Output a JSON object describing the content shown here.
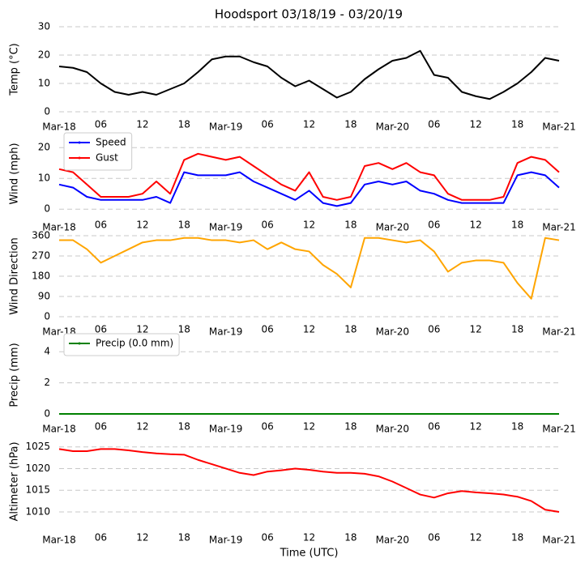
{
  "chart_data": [
    {
      "type": "line",
      "title": "Hoodsport 03/18/19 - 03/20/19",
      "ylabel": "Temp (°C)",
      "x": [
        0,
        2,
        4,
        6,
        8,
        10,
        12,
        14,
        16,
        18,
        20,
        22,
        24,
        26,
        28,
        30,
        32,
        34,
        36,
        38,
        40,
        42,
        44,
        46,
        48,
        50,
        52,
        54,
        56,
        58,
        60,
        62,
        64,
        66,
        68,
        70,
        72
      ],
      "series": [
        {
          "name": null,
          "color": "#000000",
          "values": [
            16,
            15.5,
            14,
            10,
            7,
            6,
            7,
            6,
            8,
            10,
            14,
            18.5,
            19.5,
            19.5,
            17.5,
            16,
            12,
            9,
            11,
            8,
            5,
            7,
            11.5,
            15,
            18,
            19,
            21.5,
            13,
            12,
            7,
            5.5,
            4.5,
            7,
            10,
            14,
            19,
            18
          ]
        }
      ],
      "xlim": [
        0,
        72
      ],
      "xticks": [
        {
          "value": 0,
          "label": "Mar-18"
        },
        {
          "value": 6,
          "label": "06"
        },
        {
          "value": 12,
          "label": "12"
        },
        {
          "value": 18,
          "label": "18"
        },
        {
          "value": 24,
          "label": "Mar-19"
        },
        {
          "value": 30,
          "label": "06"
        },
        {
          "value": 36,
          "label": "12"
        },
        {
          "value": 42,
          "label": "18"
        },
        {
          "value": 48,
          "label": "Mar-20"
        },
        {
          "value": 54,
          "label": "06"
        },
        {
          "value": 60,
          "label": "12"
        },
        {
          "value": 66,
          "label": "18"
        },
        {
          "value": 72,
          "label": "Mar-21"
        }
      ],
      "ylim": [
        0,
        30
      ],
      "yticks": [
        0,
        10,
        20,
        30
      ],
      "grid": true
    },
    {
      "type": "line",
      "ylabel": "Wind (mph)",
      "x": [
        0,
        2,
        4,
        6,
        8,
        10,
        12,
        14,
        16,
        18,
        20,
        22,
        24,
        26,
        28,
        30,
        32,
        34,
        36,
        38,
        40,
        42,
        44,
        46,
        48,
        50,
        52,
        54,
        56,
        58,
        60,
        62,
        64,
        66,
        68,
        70,
        72
      ],
      "series": [
        {
          "name": "Speed",
          "color": "#0000ff",
          "values": [
            8,
            7,
            4,
            3,
            3,
            3,
            3,
            4,
            2,
            12,
            11,
            11,
            11,
            12,
            9,
            7,
            5,
            3,
            6,
            2,
            1,
            2,
            8,
            9,
            8,
            9,
            6,
            5,
            3,
            2,
            2,
            2,
            2,
            11,
            12,
            11,
            7
          ]
        },
        {
          "name": "Gust",
          "color": "#ff0000",
          "values": [
            13,
            12,
            8,
            4,
            4,
            4,
            5,
            9,
            5,
            16,
            18,
            17,
            16,
            17,
            14,
            11,
            8,
            6,
            12,
            4,
            3,
            4,
            14,
            15,
            13,
            15,
            12,
            11,
            5,
            3,
            3,
            3,
            4,
            15,
            17,
            16,
            12
          ]
        }
      ],
      "xlim": [
        0,
        72
      ],
      "xticks": [
        {
          "value": 0,
          "label": "Mar-18"
        },
        {
          "value": 6,
          "label": "06"
        },
        {
          "value": 12,
          "label": "12"
        },
        {
          "value": 18,
          "label": "18"
        },
        {
          "value": 24,
          "label": "Mar-19"
        },
        {
          "value": 30,
          "label": "06"
        },
        {
          "value": 36,
          "label": "12"
        },
        {
          "value": 42,
          "label": "18"
        },
        {
          "value": 48,
          "label": "Mar-20"
        },
        {
          "value": 54,
          "label": "06"
        },
        {
          "value": 60,
          "label": "12"
        },
        {
          "value": 66,
          "label": "18"
        },
        {
          "value": 72,
          "label": "Mar-21"
        }
      ],
      "ylim": [
        -1,
        24
      ],
      "yticks": [
        0,
        10,
        20
      ],
      "grid": true,
      "legend": "upper left"
    },
    {
      "type": "line",
      "ylabel": "Wind Direction",
      "x": [
        0,
        2,
        4,
        6,
        8,
        10,
        12,
        14,
        16,
        18,
        20,
        22,
        24,
        26,
        28,
        30,
        32,
        34,
        36,
        38,
        40,
        42,
        44,
        46,
        48,
        50,
        52,
        54,
        56,
        58,
        60,
        62,
        64,
        66,
        68,
        70,
        72
      ],
      "series": [
        {
          "name": null,
          "color": "#ffa500",
          "values": [
            340,
            340,
            300,
            240,
            270,
            300,
            330,
            340,
            340,
            350,
            350,
            340,
            340,
            330,
            340,
            300,
            330,
            300,
            290,
            230,
            190,
            130,
            350,
            350,
            340,
            330,
            340,
            290,
            200,
            240,
            250,
            250,
            240,
            150,
            80,
            350,
            340
          ]
        }
      ],
      "xlim": [
        0,
        72
      ],
      "xticks": [
        {
          "value": 0,
          "label": "Mar-18"
        },
        {
          "value": 6,
          "label": "06"
        },
        {
          "value": 12,
          "label": "12"
        },
        {
          "value": 18,
          "label": "18"
        },
        {
          "value": 24,
          "label": "Mar-19"
        },
        {
          "value": 30,
          "label": "06"
        },
        {
          "value": 36,
          "label": "12"
        },
        {
          "value": 42,
          "label": "18"
        },
        {
          "value": 48,
          "label": "Mar-20"
        },
        {
          "value": 54,
          "label": "06"
        },
        {
          "value": 60,
          "label": "12"
        },
        {
          "value": 66,
          "label": "18"
        },
        {
          "value": 72,
          "label": "Mar-21"
        }
      ],
      "ylim": [
        0,
        360
      ],
      "yticks": [
        0,
        90,
        180,
        270,
        360
      ],
      "grid": true
    },
    {
      "type": "line",
      "ylabel": "Precip (mm)",
      "x": [
        0,
        2,
        4,
        6,
        8,
        10,
        12,
        14,
        16,
        18,
        20,
        22,
        24,
        26,
        28,
        30,
        32,
        34,
        36,
        38,
        40,
        42,
        44,
        46,
        48,
        50,
        52,
        54,
        56,
        58,
        60,
        62,
        64,
        66,
        68,
        70,
        72
      ],
      "series": [
        {
          "name": "Precip (0.0 mm)",
          "color": "#008000",
          "values": [
            0,
            0,
            0,
            0,
            0,
            0,
            0,
            0,
            0,
            0,
            0,
            0,
            0,
            0,
            0,
            0,
            0,
            0,
            0,
            0,
            0,
            0,
            0,
            0,
            0,
            0,
            0,
            0,
            0,
            0,
            0,
            0,
            0,
            0,
            0,
            0,
            0
          ]
        }
      ],
      "xlim": [
        0,
        72
      ],
      "xticks": [
        {
          "value": 0,
          "label": "Mar-18"
        },
        {
          "value": 6,
          "label": "06"
        },
        {
          "value": 12,
          "label": "12"
        },
        {
          "value": 18,
          "label": "18"
        },
        {
          "value": 24,
          "label": "Mar-19"
        },
        {
          "value": 30,
          "label": "06"
        },
        {
          "value": 36,
          "label": "12"
        },
        {
          "value": 42,
          "label": "18"
        },
        {
          "value": 48,
          "label": "Mar-20"
        },
        {
          "value": 54,
          "label": "06"
        },
        {
          "value": 60,
          "label": "12"
        },
        {
          "value": 66,
          "label": "18"
        },
        {
          "value": 72,
          "label": "Mar-21"
        }
      ],
      "ylim": [
        0,
        5
      ],
      "yticks": [
        0,
        2,
        4
      ],
      "grid": true,
      "legend": "upper left"
    },
    {
      "type": "line",
      "ylabel": "Altimeter (hPa)",
      "xlabel": "Time (UTC)",
      "x": [
        0,
        2,
        4,
        6,
        8,
        10,
        12,
        14,
        16,
        18,
        20,
        22,
        24,
        26,
        28,
        30,
        32,
        34,
        36,
        38,
        40,
        42,
        44,
        46,
        48,
        50,
        52,
        54,
        56,
        58,
        60,
        62,
        64,
        66,
        68,
        70,
        72
      ],
      "series": [
        {
          "name": null,
          "color": "#ff0000",
          "values": [
            1024.5,
            1024,
            1024,
            1024.5,
            1024.5,
            1024.2,
            1023.8,
            1023.5,
            1023.3,
            1023.2,
            1022,
            1021,
            1020,
            1019,
            1018.5,
            1019.3,
            1019.6,
            1020,
            1019.7,
            1019.3,
            1019,
            1019,
            1018.8,
            1018.2,
            1017,
            1015.5,
            1014,
            1013.3,
            1014.3,
            1014.8,
            1014.5,
            1014.3,
            1014,
            1013.5,
            1012.5,
            1010.5,
            1010
          ]
        }
      ],
      "xlim": [
        0,
        72
      ],
      "xticks": [
        {
          "value": 0,
          "label": "Mar-18"
        },
        {
          "value": 6,
          "label": "06"
        },
        {
          "value": 12,
          "label": "12"
        },
        {
          "value": 18,
          "label": "18"
        },
        {
          "value": 24,
          "label": "Mar-19"
        },
        {
          "value": 30,
          "label": "06"
        },
        {
          "value": 36,
          "label": "12"
        },
        {
          "value": 42,
          "label": "18"
        },
        {
          "value": 48,
          "label": "Mar-20"
        },
        {
          "value": 54,
          "label": "06"
        },
        {
          "value": 60,
          "label": "12"
        },
        {
          "value": 66,
          "label": "18"
        },
        {
          "value": 72,
          "label": "Mar-21"
        }
      ],
      "ylim": [
        1007,
        1027
      ],
      "yticks": [
        1010,
        1015,
        1020,
        1025
      ],
      "grid": true
    }
  ]
}
